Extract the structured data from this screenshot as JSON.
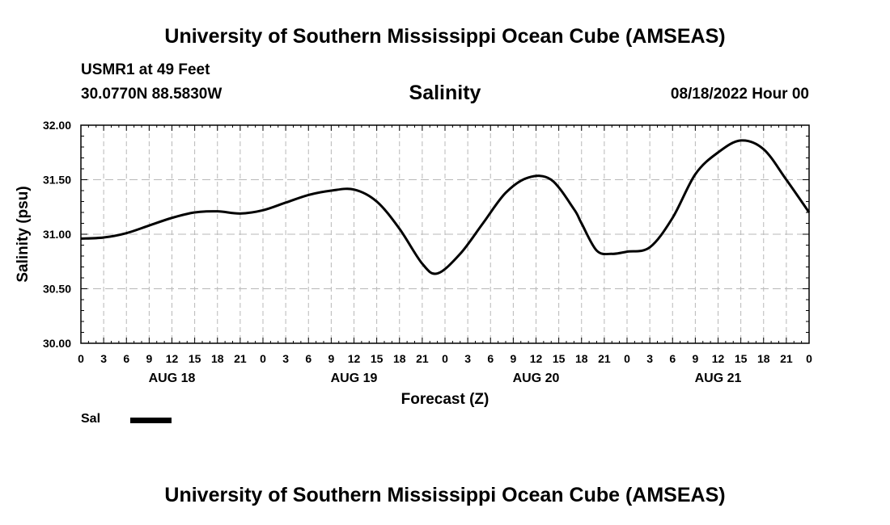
{
  "header": {
    "main_title": "University of Southern Mississippi Ocean Cube (AMSEAS)",
    "station": "USMR1 at 49 Feet",
    "coordinates": "30.0770N  88.5830W",
    "run_time": "08/18/2022 Hour 00"
  },
  "footer": {
    "title": "University of Southern Mississippi Ocean Cube (AMSEAS)"
  },
  "legend": {
    "series_label": "Sal",
    "swatch_color": "#000000"
  },
  "chart_data": {
    "type": "line",
    "title": "Salinity",
    "xlabel": "Forecast (Z)",
    "ylabel": "Salinity (psu)",
    "ylim": [
      30.0,
      32.0
    ],
    "yticks": [
      "30.00",
      "30.50",
      "31.00",
      "31.50",
      "32.00"
    ],
    "xlim_hours": [
      0,
      96
    ],
    "hour_tick_labels": [
      "0",
      "3",
      "6",
      "9",
      "12",
      "15",
      "18",
      "21",
      "0",
      "3",
      "6",
      "9",
      "12",
      "15",
      "18",
      "21",
      "0",
      "3",
      "6",
      "9",
      "12",
      "15",
      "18",
      "21",
      "0",
      "3",
      "6",
      "9",
      "12",
      "15",
      "18",
      "21",
      "0"
    ],
    "day_labels": [
      {
        "label": "AUG 18",
        "hour": 12
      },
      {
        "label": "AUG 19",
        "hour": 36
      },
      {
        "label": "AUG 20",
        "hour": 60
      },
      {
        "label": "AUG 21",
        "hour": 84
      }
    ],
    "grid": true,
    "series": [
      {
        "name": "Sal",
        "color": "#000000",
        "x_hours": [
          0,
          3,
          6,
          9,
          12,
          15,
          18,
          21,
          24,
          27,
          30,
          33,
          36,
          39,
          42,
          45,
          47,
          50,
          53,
          56,
          59,
          62,
          65,
          66,
          68,
          70,
          72,
          75,
          78,
          81,
          84,
          87,
          90,
          93,
          96
        ],
        "values": [
          30.96,
          30.97,
          31.01,
          31.08,
          31.15,
          31.2,
          31.21,
          31.19,
          31.22,
          31.29,
          31.36,
          31.4,
          31.41,
          31.3,
          31.05,
          30.73,
          30.64,
          30.82,
          31.1,
          31.38,
          31.52,
          31.5,
          31.23,
          31.1,
          30.85,
          30.82,
          30.84,
          30.88,
          31.15,
          31.55,
          31.75,
          31.86,
          31.78,
          31.5,
          31.2
        ]
      }
    ]
  }
}
